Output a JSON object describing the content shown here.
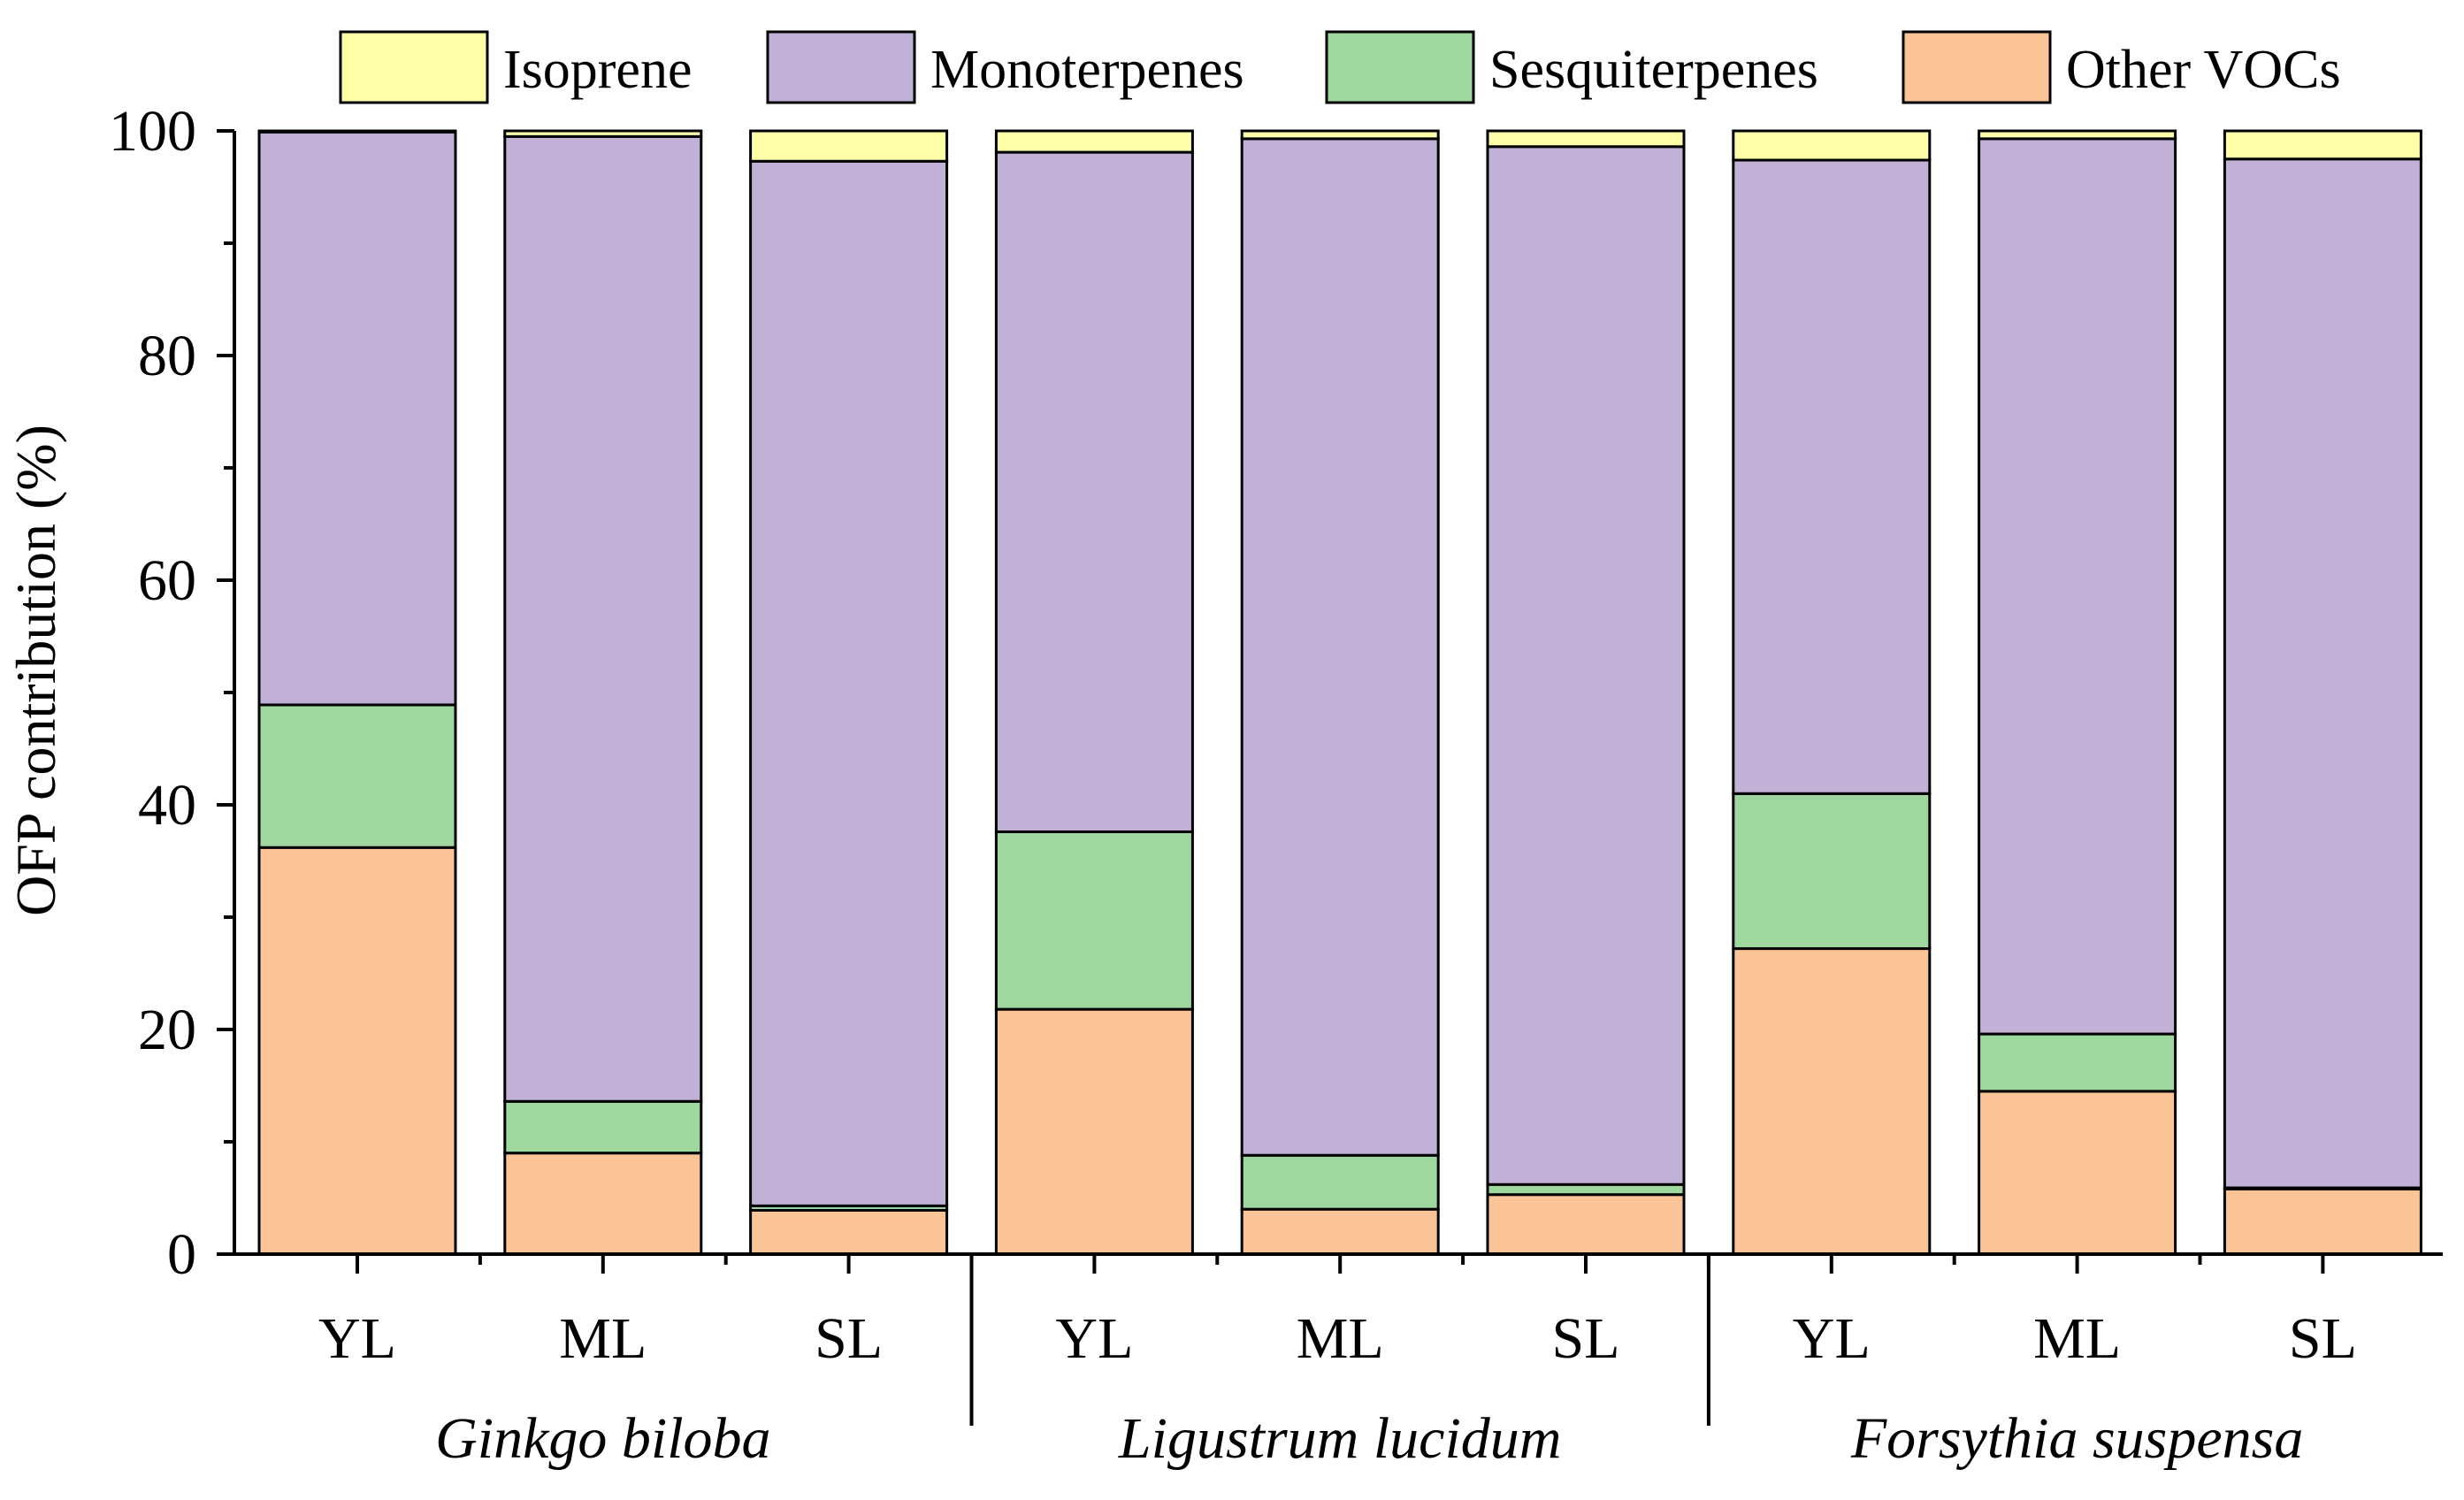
{
  "chart_data": {
    "type": "bar",
    "stacked": true,
    "title": "",
    "xlabel": "",
    "ylabel": "OFP contribution (%)",
    "ylim": [
      0,
      100
    ],
    "yticks": [
      0,
      20,
      40,
      60,
      80,
      100
    ],
    "grid": false,
    "legend_position": "top",
    "groups": [
      {
        "name": "Ginkgo biloba",
        "categories": [
          "YL",
          "ML",
          "SL"
        ]
      },
      {
        "name": "Ligustrum lucidum",
        "categories": [
          "YL",
          "ML",
          "SL"
        ]
      },
      {
        "name": "Forsythia suspensa",
        "categories": [
          "YL",
          "ML",
          "SL"
        ]
      }
    ],
    "categories": [
      "YL",
      "ML",
      "SL",
      "YL",
      "ML",
      "SL",
      "YL",
      "ML",
      "SL"
    ],
    "series": [
      {
        "name": "Other VOCs",
        "color": "#FAC497",
        "values": [
          36.2,
          9.0,
          3.9,
          21.8,
          4.0,
          5.3,
          27.2,
          14.5,
          5.8
        ]
      },
      {
        "name": "Sesquiterpenes",
        "color": "#9FD89E",
        "values": [
          12.7,
          4.6,
          0.4,
          15.8,
          4.8,
          0.9,
          13.8,
          5.1,
          0.1
        ]
      },
      {
        "name": "Monoterpenes",
        "color": "#C1B1D7",
        "values": [
          51.0,
          85.9,
          93.0,
          60.5,
          90.5,
          92.4,
          56.4,
          79.7,
          91.6
        ]
      },
      {
        "name": "Isoprene",
        "color": "#FFFFA8",
        "values": [
          0.1,
          0.5,
          2.7,
          1.9,
          0.7,
          1.4,
          2.6,
          0.7,
          2.5
        ]
      }
    ],
    "legend": [
      {
        "name": "Isoprene",
        "color": "#FFFFA8"
      },
      {
        "name": "Monoterpenes",
        "color": "#C1B1D7"
      },
      {
        "name": "Sesquiterpenes",
        "color": "#9FD89E"
      },
      {
        "name": "Other VOCs",
        "color": "#FAC497"
      }
    ]
  }
}
